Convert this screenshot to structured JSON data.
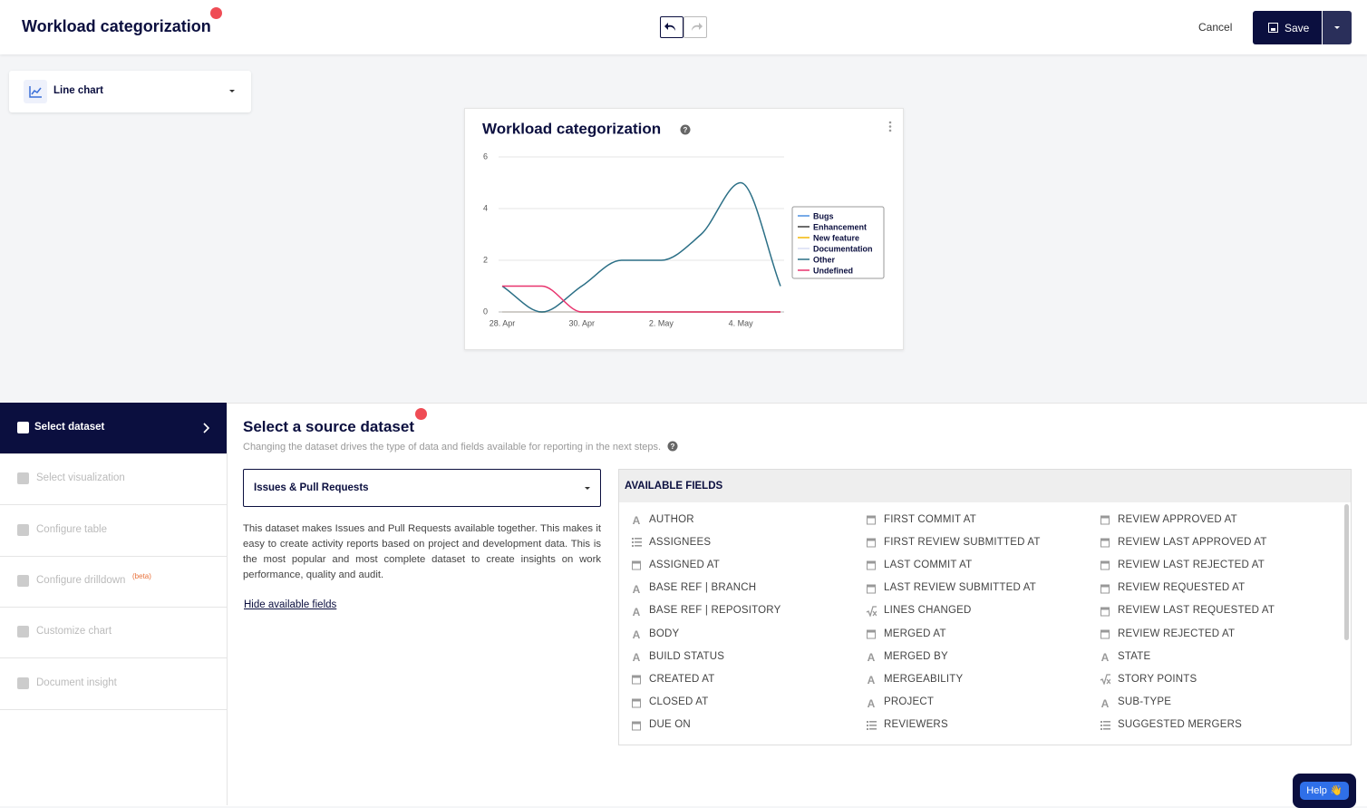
{
  "header": {
    "title": "Workload categorization",
    "cancel": "Cancel",
    "save": "Save"
  },
  "chart_selector": {
    "label": "Line chart"
  },
  "chart_data": {
    "type": "line",
    "title": "Workload categorization",
    "categories": [
      "28. Apr",
      null,
      "30. Apr",
      null,
      "2. May",
      null,
      "4. May",
      null
    ],
    "series": [
      {
        "name": "Bugs",
        "color": "#4a8fe0",
        "values": [
          0,
          0,
          0,
          0,
          0,
          0,
          0,
          0
        ]
      },
      {
        "name": "Enhancement",
        "color": "#3a3a3a",
        "values": [
          0,
          0,
          0,
          0,
          0,
          0,
          0,
          0
        ]
      },
      {
        "name": "New feature",
        "color": "#f2b705",
        "values": [
          0,
          0,
          0,
          0,
          0,
          0,
          0,
          0
        ]
      },
      {
        "name": "Documentation",
        "color": "#d9dcf2",
        "values": [
          0,
          0,
          0,
          0,
          0,
          0,
          0,
          0
        ]
      },
      {
        "name": "Other",
        "color": "#2b6f86",
        "values": [
          1,
          0,
          1,
          2,
          2,
          3,
          5,
          1
        ]
      },
      {
        "name": "Undefined",
        "color": "#e8336d",
        "values": [
          1,
          1,
          0,
          0,
          0,
          0,
          0,
          0
        ]
      }
    ],
    "ylim": [
      0,
      6
    ],
    "yticks": [
      0,
      2,
      4,
      6
    ],
    "grid": true
  },
  "sidebar": {
    "steps": [
      {
        "label": "Select dataset",
        "active": true
      },
      {
        "label": "Select visualization"
      },
      {
        "label": "Configure table"
      },
      {
        "label": "Configure drilldown",
        "badge": "(beta)"
      },
      {
        "label": "Customize chart"
      },
      {
        "label": "Document insight"
      }
    ]
  },
  "dataset": {
    "title": "Select a source dataset",
    "subtitle": "Changing the dataset drives the type of data and fields available for reporting in the next steps.",
    "selected": "Issues & Pull Requests",
    "description": "This dataset makes Issues and Pull Requests available together. This makes it easy to create activity reports based on project and development data. This is the most popular and most complete dataset to create insights on work performance, quality and audit.",
    "hide_link": "Hide available fields",
    "fields_title": "AVAILABLE FIELDS",
    "fields": [
      [
        {
          "name": "AUTHOR",
          "icon": "text"
        },
        {
          "name": "ASSIGNEES",
          "icon": "list"
        },
        {
          "name": "ASSIGNED AT",
          "icon": "date"
        },
        {
          "name": "BASE REF | BRANCH",
          "icon": "text"
        },
        {
          "name": "BASE REF | REPOSITORY",
          "icon": "text"
        },
        {
          "name": "BODY",
          "icon": "text"
        },
        {
          "name": "BUILD STATUS",
          "icon": "text"
        },
        {
          "name": "CREATED AT",
          "icon": "date"
        },
        {
          "name": "CLOSED AT",
          "icon": "date"
        },
        {
          "name": "DUE ON",
          "icon": "date"
        }
      ],
      [
        {
          "name": "FIRST COMMIT AT",
          "icon": "date"
        },
        {
          "name": "FIRST REVIEW SUBMITTED AT",
          "icon": "date"
        },
        {
          "name": "LAST COMMIT AT",
          "icon": "date"
        },
        {
          "name": "LAST REVIEW SUBMITTED AT",
          "icon": "date"
        },
        {
          "name": "LINES CHANGED",
          "icon": "formula"
        },
        {
          "name": "MERGED AT",
          "icon": "date"
        },
        {
          "name": "MERGED BY",
          "icon": "text"
        },
        {
          "name": "MERGEABILITY",
          "icon": "text"
        },
        {
          "name": "PROJECT",
          "icon": "text"
        },
        {
          "name": "REVIEWERS",
          "icon": "list"
        }
      ],
      [
        {
          "name": "REVIEW APPROVED AT",
          "icon": "date"
        },
        {
          "name": "REVIEW LAST APPROVED AT",
          "icon": "date"
        },
        {
          "name": "REVIEW LAST REJECTED AT",
          "icon": "date"
        },
        {
          "name": "REVIEW REQUESTED AT",
          "icon": "date"
        },
        {
          "name": "REVIEW LAST REQUESTED AT",
          "icon": "date"
        },
        {
          "name": "REVIEW REJECTED AT",
          "icon": "date"
        },
        {
          "name": "STATE",
          "icon": "text"
        },
        {
          "name": "STORY POINTS",
          "icon": "formula"
        },
        {
          "name": "SUB-TYPE",
          "icon": "text"
        },
        {
          "name": "SUGGESTED MERGERS",
          "icon": "list"
        }
      ]
    ]
  },
  "help": {
    "label": "Help 👋"
  }
}
